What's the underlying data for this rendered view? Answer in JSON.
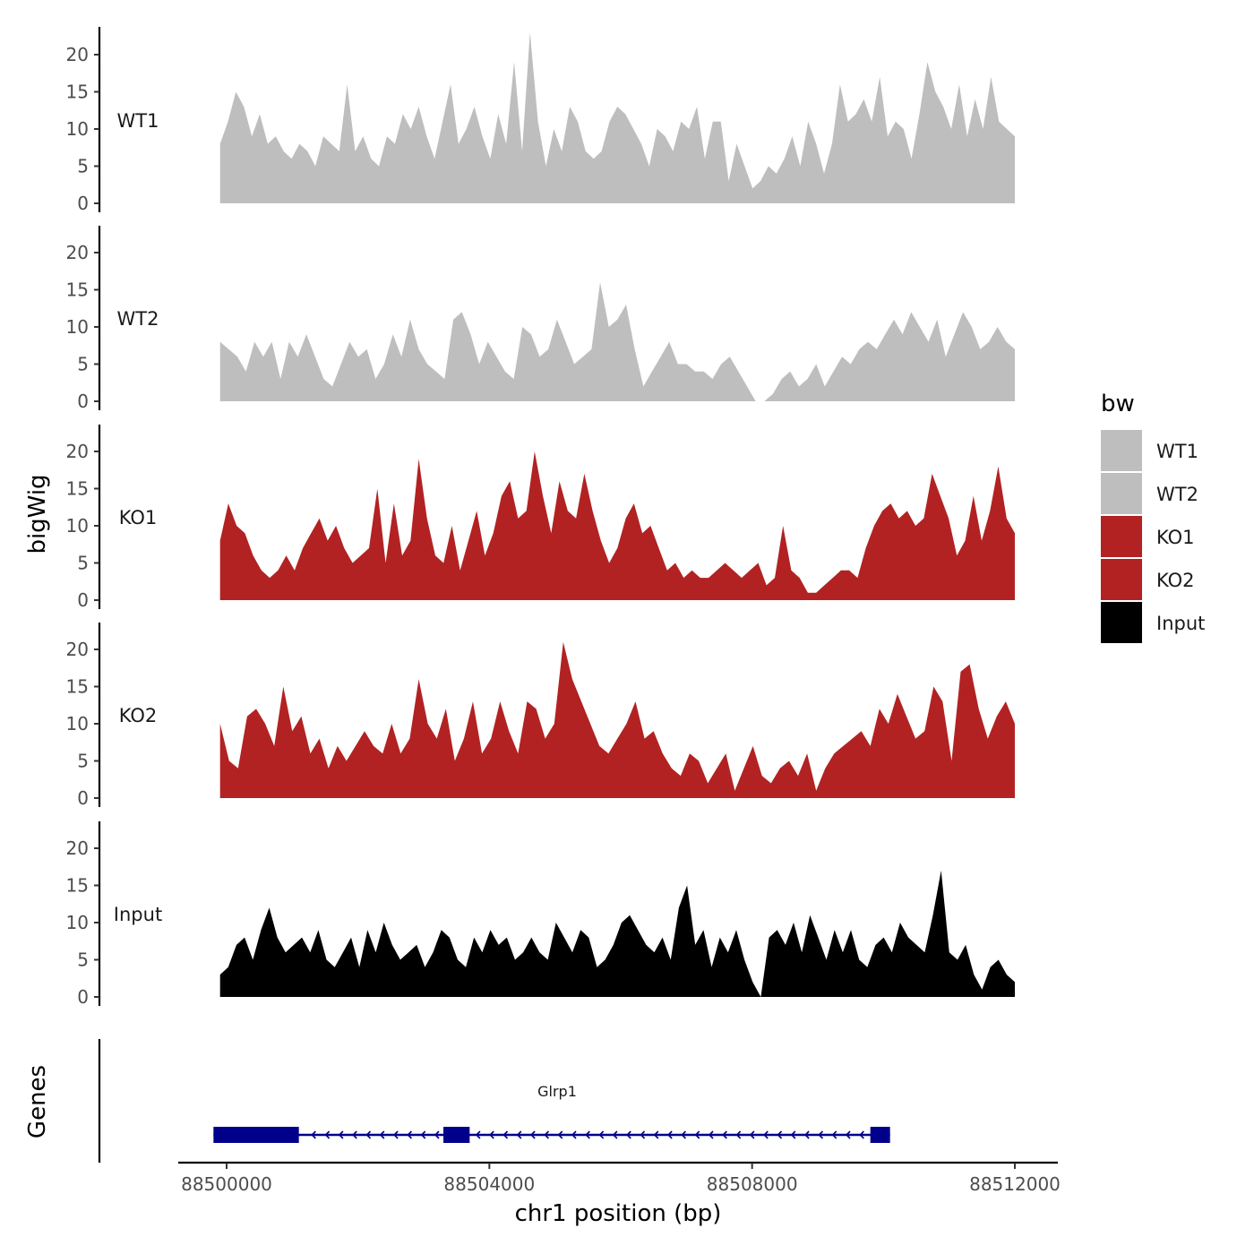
{
  "chart_data": {
    "type": "area",
    "title": "",
    "ylabel": "bigWig",
    "xlabel": "chr1 position (bp)",
    "gene_panel_label": "Genes",
    "chromosome": "chr1",
    "xlim": [
      88498600,
      88512700
    ],
    "ylim": [
      0,
      23
    ],
    "x_ticks": [
      88500000,
      88504000,
      88508000,
      88512000
    ],
    "x_tick_labels": [
      "88500000",
      "88504000",
      "88508000",
      "88512000"
    ],
    "y_ticks": [
      0,
      5,
      10,
      15,
      20
    ],
    "y_tick_labels": [
      "0",
      "5",
      "10",
      "15",
      "20"
    ],
    "x_range_data": [
      88499900,
      88512000
    ],
    "legend": {
      "title": "bw",
      "position": "right",
      "entries": [
        {
          "label": "WT1",
          "color": "#bebebe"
        },
        {
          "label": "WT2",
          "color": "#bebebe"
        },
        {
          "label": "KO1",
          "color": "#b22222"
        },
        {
          "label": "KO2",
          "color": "#b22222"
        },
        {
          "label": "Input",
          "color": "#000000"
        }
      ]
    },
    "series": [
      {
        "name": "WT1",
        "color": "#bebebe",
        "values": [
          8,
          11,
          15,
          13,
          9,
          12,
          8,
          9,
          7,
          6,
          8,
          7,
          5,
          9,
          8,
          7,
          16,
          7,
          9,
          6,
          5,
          9,
          8,
          12,
          10,
          13,
          9,
          6,
          11,
          16,
          8,
          10,
          13,
          9,
          6,
          12,
          8,
          19,
          7,
          23,
          11,
          5,
          10,
          7,
          13,
          11,
          7,
          6,
          7,
          11,
          13,
          12,
          10,
          8,
          5,
          10,
          9,
          7,
          11,
          10,
          13,
          6,
          11,
          11,
          3,
          8,
          5,
          2,
          3,
          5,
          4,
          6,
          9,
          5,
          11,
          8,
          4,
          8,
          16,
          11,
          12,
          14,
          11,
          17,
          9,
          11,
          10,
          6,
          12,
          19,
          15,
          13,
          10,
          16,
          9,
          14,
          10,
          17,
          11,
          10,
          9
        ]
      },
      {
        "name": "WT2",
        "color": "#bebebe",
        "values": [
          8,
          7,
          6,
          4,
          8,
          6,
          8,
          3,
          8,
          6,
          9,
          6,
          3,
          2,
          5,
          8,
          6,
          7,
          3,
          5,
          9,
          6,
          11,
          7,
          5,
          4,
          3,
          11,
          12,
          9,
          5,
          8,
          6,
          4,
          3,
          10,
          9,
          6,
          7,
          11,
          8,
          5,
          6,
          7,
          16,
          10,
          11,
          13,
          7,
          2,
          4,
          6,
          8,
          5,
          5,
          4,
          4,
          3,
          5,
          6,
          4,
          2,
          0,
          0,
          1,
          3,
          4,
          2,
          3,
          5,
          2,
          4,
          6,
          5,
          7,
          8,
          7,
          9,
          11,
          9,
          12,
          10,
          8,
          11,
          6,
          9,
          12,
          10,
          7,
          8,
          10,
          8,
          7
        ]
      },
      {
        "name": "KO1",
        "color": "#b22222",
        "values": [
          8,
          13,
          10,
          9,
          6,
          4,
          3,
          4,
          6,
          4,
          7,
          9,
          11,
          8,
          10,
          7,
          5,
          6,
          7,
          15,
          5,
          13,
          6,
          8,
          19,
          11,
          6,
          5,
          10,
          4,
          8,
          12,
          6,
          9,
          14,
          16,
          11,
          12,
          20,
          14,
          9,
          16,
          12,
          11,
          17,
          12,
          8,
          5,
          7,
          11,
          13,
          9,
          10,
          7,
          4,
          5,
          3,
          4,
          3,
          3,
          4,
          5,
          4,
          3,
          4,
          5,
          2,
          3,
          10,
          4,
          3,
          1,
          1,
          2,
          3,
          4,
          4,
          3,
          7,
          10,
          12,
          13,
          11,
          12,
          10,
          11,
          17,
          14,
          11,
          6,
          8,
          14,
          8,
          12,
          18,
          11,
          9
        ]
      },
      {
        "name": "KO2",
        "color": "#b22222",
        "values": [
          10,
          5,
          4,
          11,
          12,
          10,
          7,
          15,
          9,
          11,
          6,
          8,
          4,
          7,
          5,
          7,
          9,
          7,
          6,
          10,
          6,
          8,
          16,
          10,
          8,
          12,
          5,
          8,
          13,
          6,
          8,
          13,
          9,
          6,
          13,
          12,
          8,
          10,
          21,
          16,
          13,
          10,
          7,
          6,
          8,
          10,
          13,
          8,
          9,
          6,
          4,
          3,
          6,
          5,
          2,
          4,
          6,
          1,
          4,
          7,
          3,
          2,
          4,
          5,
          3,
          6,
          1,
          4,
          6,
          7,
          8,
          9,
          7,
          12,
          10,
          14,
          11,
          8,
          9,
          15,
          13,
          5,
          17,
          18,
          12,
          8,
          11,
          13,
          10
        ]
      },
      {
        "name": "Input",
        "color": "#000000",
        "values": [
          3,
          4,
          7,
          8,
          5,
          9,
          12,
          8,
          6,
          7,
          8,
          6,
          9,
          5,
          4,
          6,
          8,
          4,
          9,
          6,
          10,
          7,
          5,
          6,
          7,
          4,
          6,
          9,
          8,
          5,
          4,
          8,
          6,
          9,
          7,
          8,
          5,
          6,
          8,
          6,
          5,
          10,
          8,
          6,
          9,
          8,
          4,
          5,
          7,
          10,
          11,
          9,
          7,
          6,
          8,
          5,
          12,
          15,
          7,
          9,
          4,
          8,
          6,
          9,
          5,
          2,
          0,
          8,
          9,
          7,
          10,
          6,
          11,
          8,
          5,
          9,
          6,
          9,
          5,
          4,
          7,
          8,
          6,
          10,
          8,
          7,
          6,
          11,
          17,
          6,
          5,
          7,
          3,
          1,
          4,
          5,
          3,
          2
        ]
      }
    ],
    "gene": {
      "name": "Glrp1",
      "start": 88499800,
      "end": 88510100,
      "strand": "-",
      "exons": [
        [
          88499800,
          88501100
        ],
        [
          88503300,
          88503700
        ],
        [
          88509800,
          88510100
        ]
      ]
    }
  }
}
